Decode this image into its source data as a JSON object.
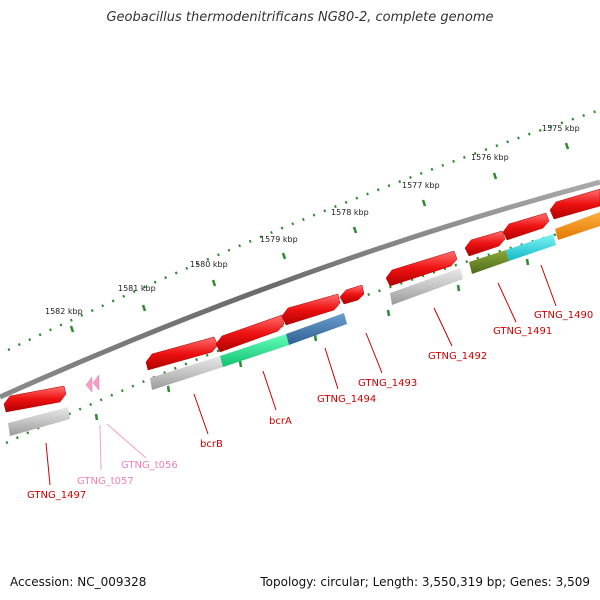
{
  "title": "Geobacillus thermodenitrificans NG80-2, complete genome",
  "footer": {
    "accession": "Accession: NC_009328",
    "summary": "Topology: circular; Length: 3,550,319 bp; Genes: 3,509"
  },
  "colors": {
    "backbone": "#777777",
    "tick": "#2e8b2e",
    "gene_red": "#ee1111",
    "trna_pink": "#f5a0c8",
    "label_red": "#cc0000",
    "label_pink": "#f080b8"
  },
  "ruler": [
    {
      "label": "1575 kbp"
    },
    {
      "label": "1576 kbp"
    },
    {
      "label": "1577 kbp"
    },
    {
      "label": "1578 kbp"
    },
    {
      "label": "1579 kbp"
    },
    {
      "label": "1580 kbp"
    },
    {
      "label": "1581 kbp"
    },
    {
      "label": "1582 kbp"
    }
  ],
  "gene_labels": [
    {
      "name": "GTNG_1490"
    },
    {
      "name": "GTNG_1491"
    },
    {
      "name": "GTNG_1492"
    },
    {
      "name": "GTNG_1493"
    },
    {
      "name": "GTNG_1494"
    },
    {
      "name": "bcrA"
    },
    {
      "name": "bcrB"
    },
    {
      "name": "GTNG_t056"
    },
    {
      "name": "GTNG_t057"
    },
    {
      "name": "GTNG_1497"
    }
  ]
}
